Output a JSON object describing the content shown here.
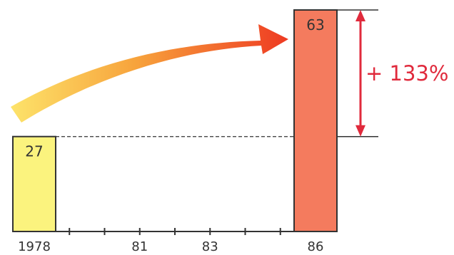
{
  "chart_data": {
    "type": "bar",
    "title": "",
    "xlabel": "",
    "ylabel": "",
    "categories": [
      "1978",
      "86"
    ],
    "values": [
      27,
      63
    ],
    "bar_labels": [
      "27",
      "63"
    ],
    "bar_colors": [
      "#fbf37e",
      "#f47b5e"
    ],
    "x_range": [
      1978,
      1986
    ],
    "x_axis_ticks": [
      1979,
      1980,
      1981,
      1982,
      1983,
      1984,
      1985
    ],
    "x_tick_labels": [
      {
        "x": 1978,
        "text": "1978"
      },
      {
        "x": 1981,
        "text": "81"
      },
      {
        "x": 1983,
        "text": "83"
      },
      {
        "x": 1986,
        "text": "86"
      }
    ],
    "ylim": [
      0,
      63
    ],
    "grid": false,
    "legend": "none",
    "annotation": {
      "text": "+ 133%",
      "from_value": 27,
      "to_value": 63,
      "color": "#e02a3c"
    },
    "arrow_gradient": [
      "#fde36a",
      "#f7a33c",
      "#ee3a22"
    ]
  }
}
